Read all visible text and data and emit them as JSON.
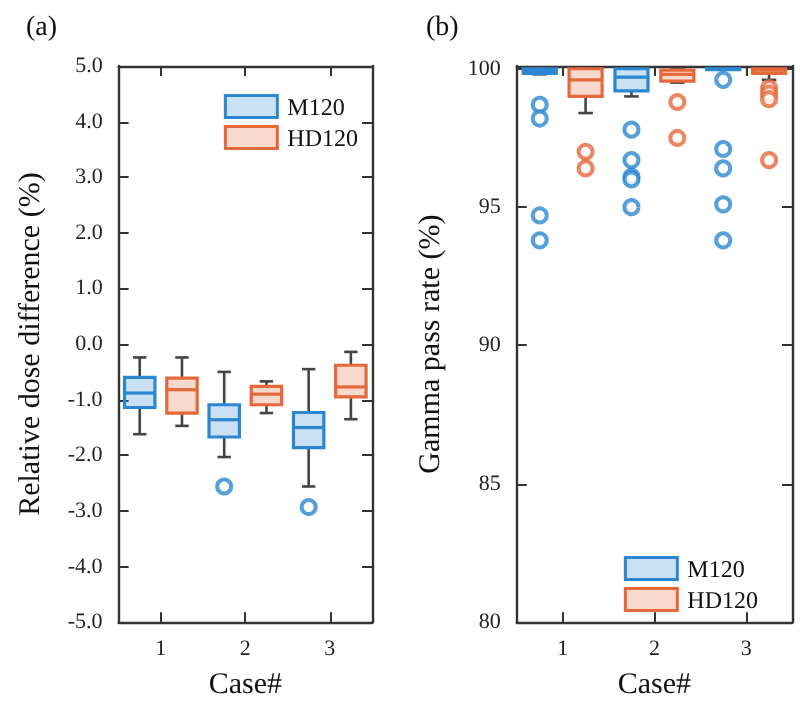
{
  "chart_data": [
    {
      "type": "box",
      "title": "(a)",
      "xlabel": "Case#",
      "ylabel": "Relative dose difference (%)",
      "categories": [
        "1",
        "2",
        "3"
      ],
      "ylim": [
        -5,
        5
      ],
      "yticks": [
        {
          "value": -5,
          "label": "-5.0"
        },
        {
          "value": -4,
          "label": "-4.0"
        },
        {
          "value": -3,
          "label": "-3.0"
        },
        {
          "value": -2,
          "label": "-2.0"
        },
        {
          "value": -1,
          "label": "-1.0"
        },
        {
          "value": 0,
          "label": "0.0"
        },
        {
          "value": 1,
          "label": "1.0"
        },
        {
          "value": 2,
          "label": "2.0"
        },
        {
          "value": 3,
          "label": "3.0"
        },
        {
          "value": 4,
          "label": "4.0"
        },
        {
          "value": 5,
          "label": "5.0"
        }
      ],
      "legend": "top right",
      "grid": false,
      "series": [
        {
          "name": "M120",
          "color": "#2b87d1",
          "boxes": [
            {
              "low": -1.62,
              "q1": -1.14,
              "median": -0.88,
              "q3": -0.6,
              "high": -0.24
            },
            {
              "low": -2.03,
              "q1": -1.67,
              "median": -1.36,
              "q3": -1.09,
              "high": -0.5,
              "outliers": [
                -2.56
              ]
            },
            {
              "low": -2.56,
              "q1": -1.86,
              "median": -1.5,
              "q3": -1.23,
              "high": -0.45,
              "outliers": [
                -2.93
              ]
            }
          ]
        },
        {
          "name": "HD120",
          "color": "#e5683a",
          "boxes": [
            {
              "low": -1.47,
              "q1": -1.24,
              "median": -0.82,
              "q3": -0.61,
              "high": -0.24
            },
            {
              "low": -1.24,
              "q1": -1.09,
              "median": -0.9,
              "q3": -0.76,
              "high": -0.67
            },
            {
              "low": -1.35,
              "q1": -0.95,
              "median": -0.77,
              "q3": -0.38,
              "high": -0.14
            }
          ]
        }
      ]
    },
    {
      "type": "box",
      "title": "(b)",
      "xlabel": "Case#",
      "ylabel": "Gamma pass rate (%)",
      "categories": [
        "1",
        "2",
        "3"
      ],
      "ylim": [
        80,
        100.1
      ],
      "yticks": [
        80,
        85,
        90,
        95,
        100
      ],
      "legend": "bottom right",
      "grid": false,
      "series": [
        {
          "name": "M120",
          "color": "#2b87d1",
          "boxes": [
            {
              "low": 99.8,
              "q1": 99.83,
              "median": 99.9,
              "q3": 100,
              "high": 100,
              "outliers": [
                98.7,
                98.2,
                94.7,
                93.8
              ]
            },
            {
              "low": 99.0,
              "q1": 99.2,
              "median": 99.7,
              "q3": 100,
              "high": 100,
              "outliers": [
                97.8,
                96.7,
                96.1,
                96.0,
                95.0
              ]
            },
            {
              "low": 100,
              "q1": 100,
              "median": 100,
              "q3": 100,
              "high": 100,
              "outliers": [
                99.6,
                97.1,
                96.4,
                95.1,
                93.8
              ]
            }
          ]
        },
        {
          "name": "HD120",
          "color": "#e5683a",
          "boxes": [
            {
              "low": 98.4,
              "q1": 99.0,
              "median": 99.6,
              "q3": 100,
              "high": 100,
              "outliers": [
                97.0,
                96.4
              ]
            },
            {
              "low": 99.5,
              "q1": 99.55,
              "median": 99.8,
              "q3": 99.95,
              "high": 100,
              "outliers": [
                98.8,
                97.5
              ]
            },
            {
              "low": 99.6,
              "q1": 99.83,
              "median": 99.95,
              "q3": 100,
              "high": 100,
              "outliers": [
                99.3,
                99.1,
                98.9,
                96.7
              ]
            }
          ]
        }
      ]
    }
  ]
}
